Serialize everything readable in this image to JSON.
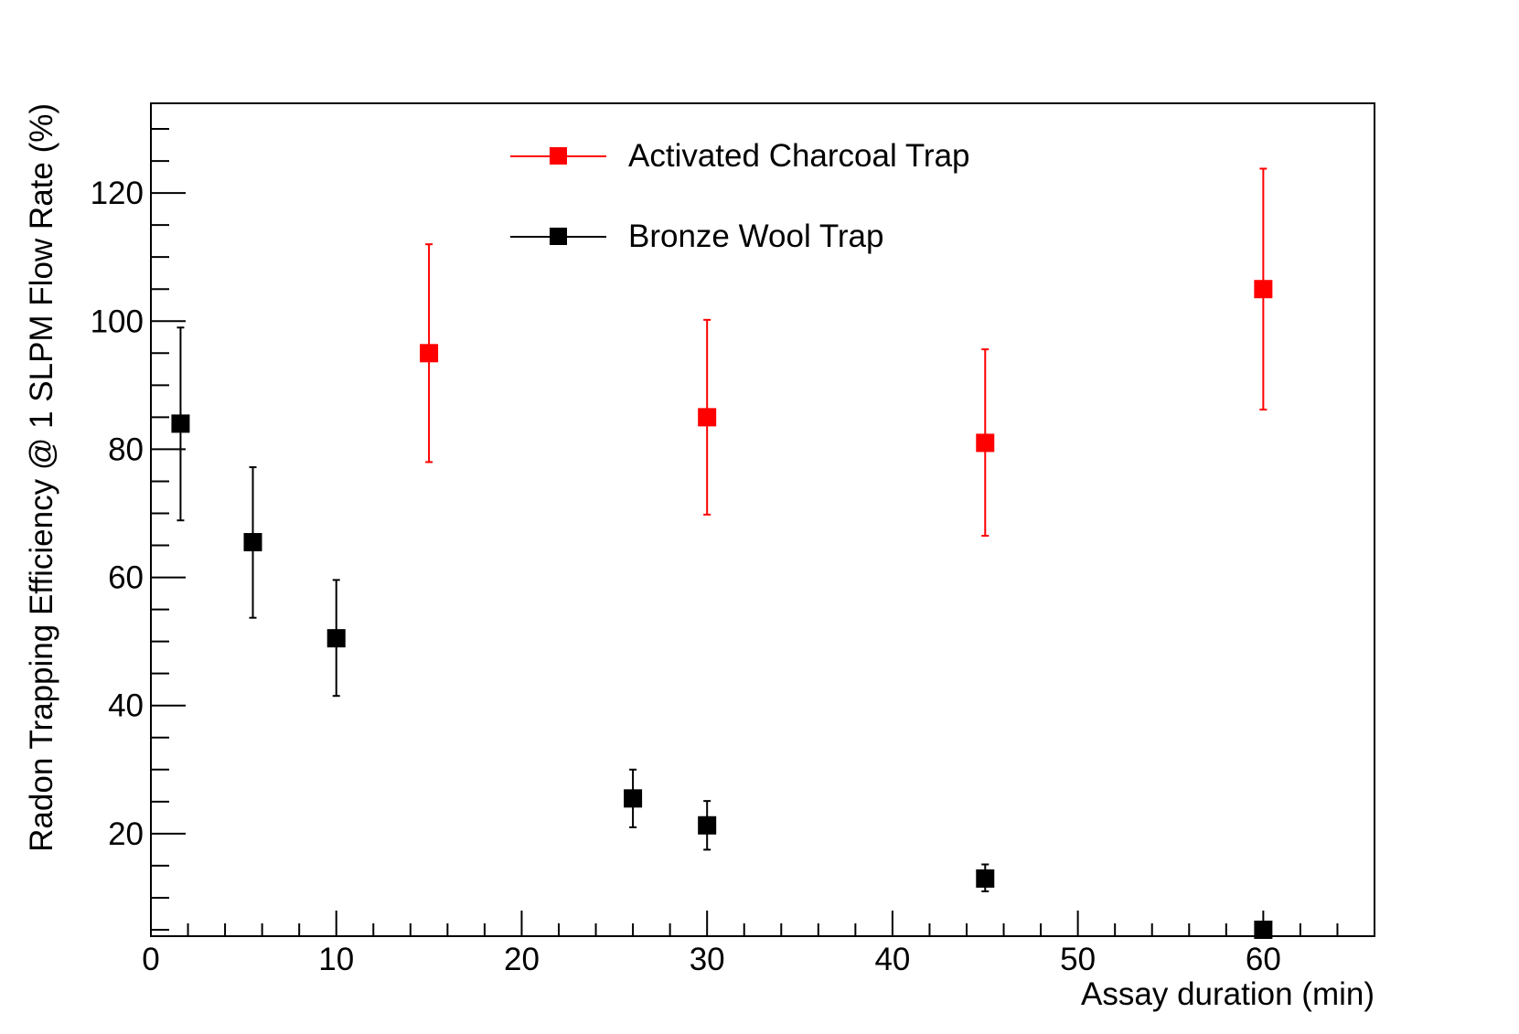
{
  "chart_data": {
    "type": "scatter",
    "xlabel": "Assay duration (min)",
    "ylabel": "Radon Trapping Efficiency @ 1 SLPM Flow Rate (%)",
    "xlim": [
      0,
      66
    ],
    "ylim": [
      4,
      134
    ],
    "x_major_ticks": [
      0,
      10,
      20,
      30,
      40,
      50,
      60
    ],
    "x_tick_labels": [
      "0",
      "10",
      "20",
      "30",
      "40",
      "50",
      "60"
    ],
    "x_minor_step": 2,
    "y_major_ticks": [
      20,
      40,
      60,
      80,
      100,
      120
    ],
    "y_tick_labels": [
      "20",
      "40",
      "60",
      "80",
      "100",
      "120"
    ],
    "y_minor_step": 5,
    "grid": false,
    "legend_position": "top-center",
    "series": [
      {
        "name": "Activated Charcoal Trap",
        "color": "#ff0000",
        "marker": "square",
        "points": [
          {
            "x": 15,
            "y": 95,
            "err_low": 78,
            "err_high": 112
          },
          {
            "x": 30,
            "y": 85,
            "err_low": 69.8,
            "err_high": 100.2
          },
          {
            "x": 45,
            "y": 81,
            "err_low": 66.5,
            "err_high": 95.6
          },
          {
            "x": 60,
            "y": 105,
            "err_low": 86.2,
            "err_high": 123.8
          }
        ]
      },
      {
        "name": "Bronze Wool Trap",
        "color": "#000000",
        "marker": "square",
        "points": [
          {
            "x": 1.6,
            "y": 84,
            "err_low": 68.9,
            "err_high": 99
          },
          {
            "x": 5.5,
            "y": 65.5,
            "err_low": 53.7,
            "err_high": 77.2
          },
          {
            "x": 10,
            "y": 50.5,
            "err_low": 41.5,
            "err_high": 59.6
          },
          {
            "x": 26,
            "y": 25.5,
            "err_low": 21,
            "err_high": 30
          },
          {
            "x": 30,
            "y": 21.3,
            "err_low": 17.5,
            "err_high": 25.1
          },
          {
            "x": 45,
            "y": 13,
            "err_low": 11,
            "err_high": 15.2
          },
          {
            "x": 60,
            "y": 5,
            "err_low": 4.8,
            "err_high": 5.2
          }
        ]
      }
    ]
  }
}
